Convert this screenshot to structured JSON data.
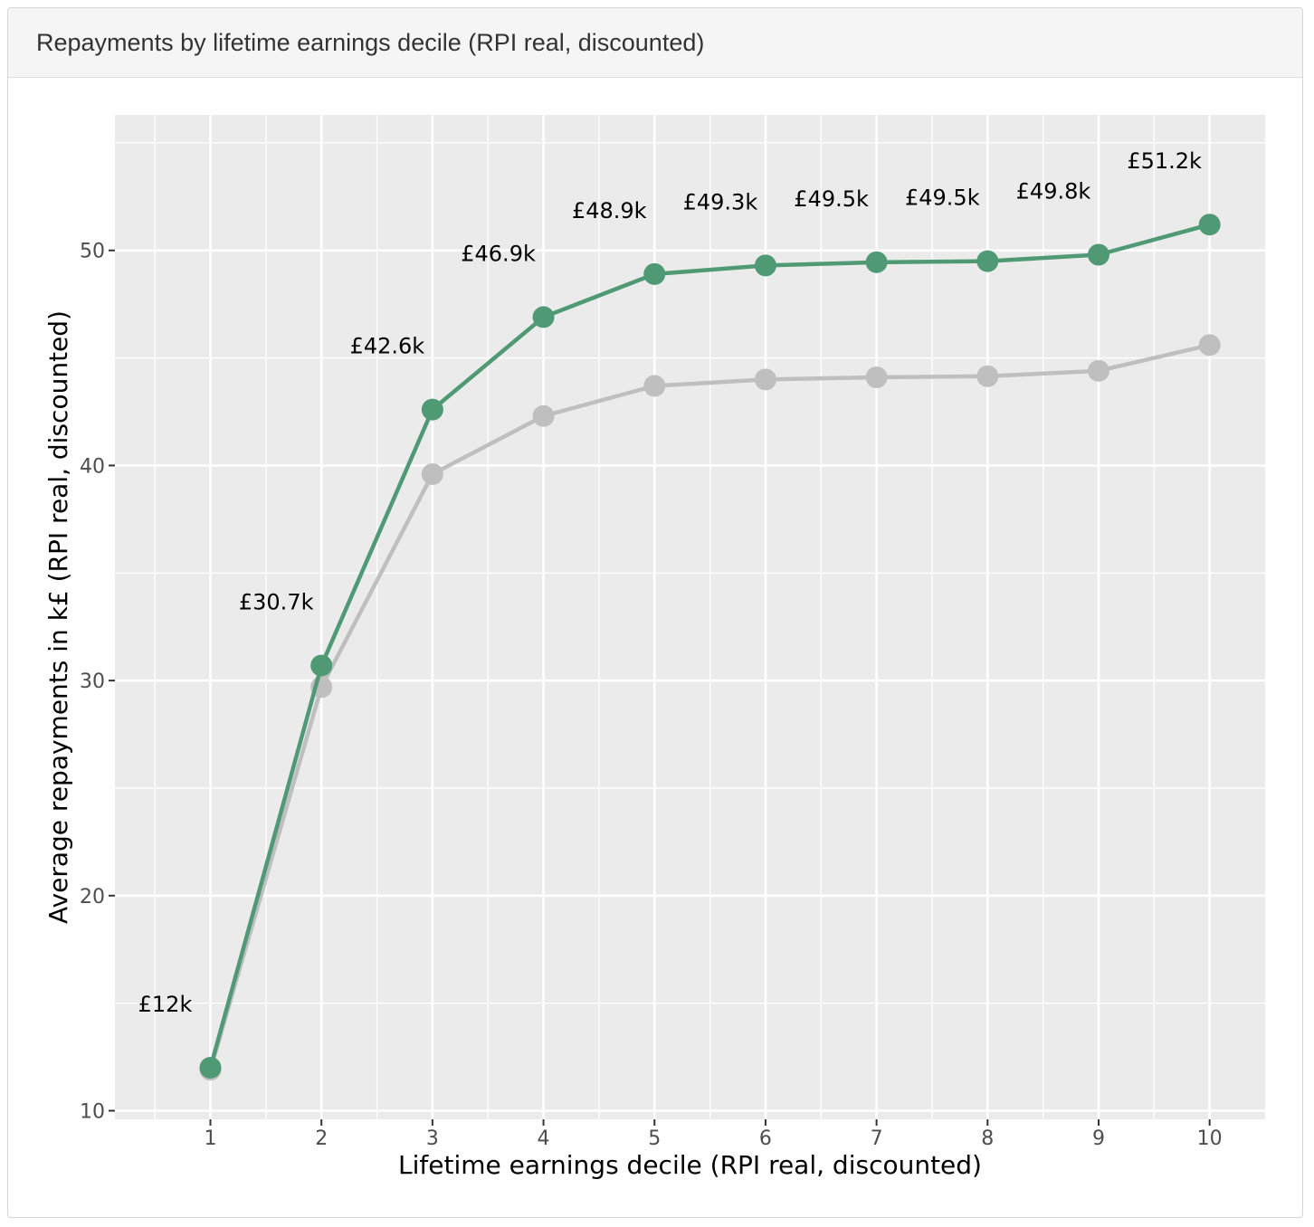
{
  "panel": {
    "title": "Repayments by lifetime earnings decile (RPI real, discounted)"
  },
  "colors": {
    "series_primary": "#4f9a74",
    "series_secondary": "#bfbfbf",
    "panel_background": "#ebebeb",
    "grid": "#ffffff"
  },
  "chart_data": {
    "type": "line",
    "title": "",
    "xlabel": "Lifetime earnings decile (RPI real, discounted)",
    "ylabel": "Average repayments in k£ (RPI real, discounted)",
    "x": [
      1,
      2,
      3,
      4,
      5,
      6,
      7,
      8,
      9,
      10
    ],
    "x_tick_labels": [
      "1",
      "2",
      "3",
      "4",
      "5",
      "6",
      "7",
      "8",
      "9",
      "10"
    ],
    "y_ticks": [
      10,
      20,
      30,
      40,
      50
    ],
    "xlim": [
      0.14,
      10.5
    ],
    "ylim": [
      9.6,
      56.3
    ],
    "grid": true,
    "legend": "none",
    "series": [
      {
        "values": [
          12.0,
          30.7,
          42.6,
          46.9,
          48.9,
          49.3,
          49.45,
          49.5,
          49.8,
          51.2
        ],
        "labels": [
          "£12k",
          "£30.7k",
          "£42.6k",
          "£46.9k",
          "£48.9k",
          "£49.3k",
          "£49.5k",
          "£49.5k",
          "£49.8k",
          "£51.2k"
        ],
        "color": "#4f9a74"
      },
      {
        "values": [
          11.9,
          29.7,
          39.6,
          42.3,
          43.7,
          44.0,
          44.1,
          44.15,
          44.4,
          45.6
        ],
        "color": "#bfbfbf"
      }
    ]
  }
}
